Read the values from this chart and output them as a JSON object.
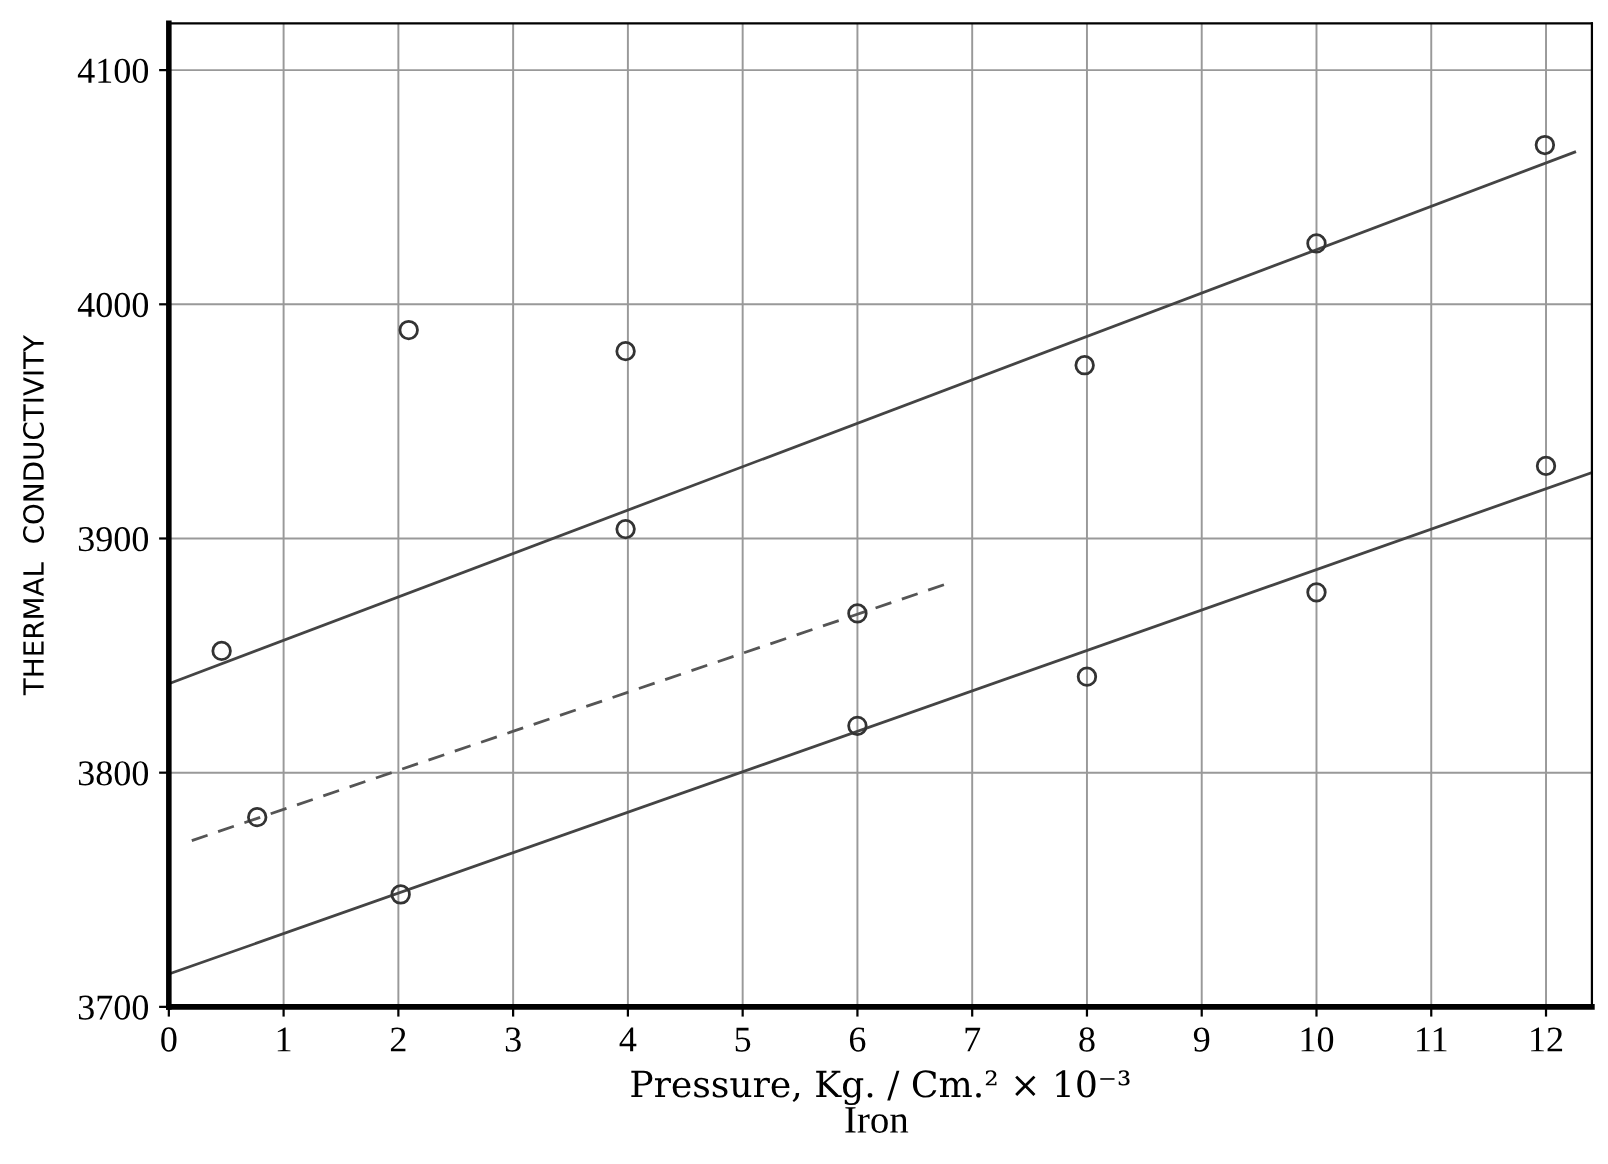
{
  "chart_data": {
    "type": "scatter",
    "xlabel": "Pressure, Kg. / Cm.² × 10⁻³",
    "ylabel": "THERMAL  CONDUCTIVITY",
    "annotations": [
      "Iron"
    ],
    "xlim": [
      0,
      12.4
    ],
    "ylim": [
      3700,
      4120
    ],
    "xticks": [
      0,
      1,
      2,
      3,
      4,
      5,
      6,
      7,
      8,
      9,
      10,
      11,
      12
    ],
    "yticks": [
      3700,
      3800,
      3900,
      4000,
      4100
    ],
    "grid": true,
    "series": [
      {
        "marker": "circle",
        "color": "#333333",
        "x": [
          0.46,
          0.77,
          2.09,
          2.02,
          3.98,
          3.98,
          6.0,
          6.0,
          7.98,
          8.0,
          10.0,
          10.0,
          11.99,
          12.0
        ],
        "values": [
          3852,
          3781,
          3989,
          3748,
          3980,
          3904,
          3868,
          3820,
          3974,
          3841,
          4026,
          3877,
          4068,
          3931
        ]
      },
      {
        "type": "line",
        "line_style": "solid",
        "color": "#444444",
        "x": [
          0,
          12.25
        ],
        "values": [
          3838,
          4065
        ]
      },
      {
        "type": "line",
        "line_style": "dashed",
        "color": "#555555",
        "x": [
          0.2,
          6.8
        ],
        "values": [
          3771,
          3881
        ]
      },
      {
        "type": "line",
        "line_style": "solid",
        "color": "#444444",
        "x": [
          0,
          12.39
        ],
        "values": [
          3714,
          3928
        ]
      }
    ]
  }
}
